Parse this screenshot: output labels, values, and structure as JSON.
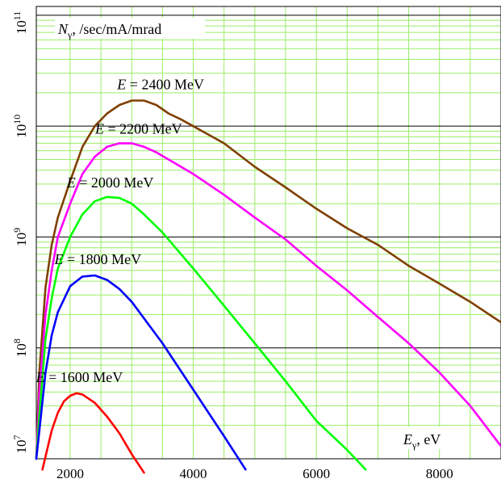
{
  "chart_data": {
    "type": "line",
    "title": "",
    "ylabel_symbol": "N",
    "ylabel_sub": "γ",
    "ylabel_unit": ", /sec/mA/mrad",
    "xlabel_symbol": "E",
    "xlabel_sub": "γ",
    "xlabel_unit": ", eV",
    "x_ticks": [
      "2000",
      "4000",
      "6000",
      "8000"
    ],
    "y_tick_base": "10",
    "y_tick_exps": [
      "7",
      "8",
      "9",
      "10",
      "11"
    ],
    "xlim": [
      1450,
      9000
    ],
    "ylim": [
      10000000,
      120000000000
    ],
    "yscale": "log",
    "grid": true,
    "series": [
      {
        "name": "E = 2400 MeV",
        "label_symbol": "E",
        "label_text": " = 2400 MeV",
        "color": "#804000",
        "x": [
          1450,
          1500,
          1600,
          1700,
          1800,
          2000,
          2200,
          2400,
          2600,
          2800,
          3000,
          3200,
          3400,
          3600,
          3800,
          4000,
          4500,
          5000,
          5500,
          6000,
          6500,
          7000,
          7500,
          8000,
          8500,
          9000
        ],
        "y": [
          10000000,
          60000000,
          350000000,
          850000000,
          1500000000,
          3200000000,
          6500000000,
          10000000000,
          13000000000,
          15500000000,
          17000000000,
          17000000000,
          15500000000,
          13000000000,
          11500000000,
          10000000000,
          7000000000,
          4300000000,
          2800000000,
          1800000000,
          1200000000,
          850000000,
          550000000,
          380000000,
          260000000,
          170000000
        ]
      },
      {
        "name": "E = 2200 MeV",
        "label_symbol": "E",
        "label_text": " = 2200 MeV",
        "color": "#ff00ff",
        "x": [
          1450,
          1500,
          1600,
          1700,
          1800,
          2000,
          2200,
          2400,
          2600,
          2800,
          3000,
          3200,
          3400,
          3600,
          4000,
          4500,
          5000,
          5500,
          6000,
          6500,
          7000,
          7500,
          8000,
          8500,
          9000
        ],
        "y": [
          10000000,
          40000000,
          200000000,
          500000000,
          1000000000,
          2000000000,
          3700000000,
          5300000000,
          6500000000,
          7000000000,
          7000000000,
          6500000000,
          5800000000,
          5000000000,
          3700000000,
          2400000000,
          1500000000,
          950000000,
          550000000,
          330000000,
          190000000,
          110000000,
          60000000,
          30000000,
          13000000
        ]
      },
      {
        "name": "E = 2000 MeV",
        "label_symbol": "E",
        "label_text": " = 2000 MeV",
        "color": "#00ff00",
        "x": [
          1450,
          1500,
          1600,
          1700,
          1800,
          2000,
          2200,
          2400,
          2600,
          2800,
          3000,
          3200,
          3500,
          4000,
          4500,
          5000,
          5500,
          6000,
          6500,
          6800
        ],
        "y": [
          10000000,
          25000000,
          120000000,
          280000000,
          520000000,
          1000000000,
          1600000000,
          2100000000,
          2300000000,
          2250000000,
          2000000000,
          1600000000,
          1100000000,
          520000000,
          240000000,
          110000000,
          50000000,
          22000000,
          12000000,
          8000000
        ]
      },
      {
        "name": "E = 1800 MeV",
        "label_symbol": "E",
        "label_text": " = 1800 MeV",
        "color": "#0000ff",
        "x": [
          1450,
          1500,
          1600,
          1700,
          1800,
          2000,
          2200,
          2400,
          2600,
          2800,
          3000,
          3500,
          4000,
          4500,
          4850
        ],
        "y": [
          10000000,
          18000000,
          60000000,
          130000000,
          210000000,
          360000000,
          440000000,
          450000000,
          410000000,
          340000000,
          260000000,
          110000000,
          42000000,
          16000000,
          8000000
        ]
      },
      {
        "name": "E = 1600 MeV",
        "label_symbol": "E",
        "label_text": " = 1600 MeV",
        "color": "#ff0000",
        "x": [
          1550,
          1700,
          1800,
          1900,
          2000,
          2100,
          2200,
          2400,
          2600,
          2800,
          3000,
          3200
        ],
        "y": [
          8000000,
          18000000,
          26000000,
          33000000,
          37000000,
          39000000,
          38000000,
          32000000,
          24000000,
          17000000,
          11000000,
          7500000
        ]
      }
    ]
  }
}
